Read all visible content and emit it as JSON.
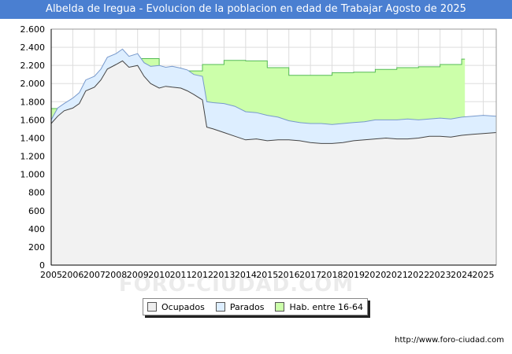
{
  "chart_data": {
    "type": "area",
    "title": "Albelda de Iregua - Evolucion de la poblacion en edad de Trabajar Agosto de 2025",
    "xlabel": "",
    "ylabel": "",
    "xlim": [
      2005.0,
      2025.6
    ],
    "ylim": [
      0,
      2600
    ],
    "y_ticks": [
      0,
      200,
      400,
      600,
      800,
      1000,
      1200,
      1400,
      1600,
      1800,
      2000,
      2200,
      2400,
      2600
    ],
    "y_tick_labels": [
      "0",
      "200",
      "400",
      "600",
      "800",
      "1.000",
      "1.200",
      "1.400",
      "1.600",
      "1.800",
      "2.000",
      "2.200",
      "2.400",
      "2.600"
    ],
    "x_ticks": [
      2005,
      2006,
      2007,
      2008,
      2009,
      2010,
      2011,
      2012,
      2013,
      2014,
      2015,
      2016,
      2017,
      2018,
      2019,
      2020,
      2021,
      2022,
      2023,
      2024,
      2025
    ],
    "x_tick_labels": [
      "2005",
      "2006",
      "2007",
      "2008",
      "2009",
      "2010",
      "2011",
      "2012",
      "2013",
      "2014",
      "2015",
      "2016",
      "2017",
      "2018",
      "2019",
      "2020",
      "2021",
      "2022",
      "2023",
      "2024",
      "2025"
    ],
    "grid": true,
    "legend_position": "bottom-center",
    "series": [
      {
        "name": "Hab. entre 16-64",
        "color": "#ccffaa",
        "line_color": "#55bb55",
        "step": true,
        "x": [
          2005,
          2006,
          2007,
          2008,
          2009,
          2010,
          2011,
          2012,
          2013,
          2014,
          2015,
          2016,
          2017,
          2018,
          2019,
          2020,
          2021,
          2022,
          2023,
          2024
        ],
        "values": [
          1725,
          1835,
          2005,
          2245,
          2275,
          2170,
          2140,
          2210,
          2255,
          2250,
          2175,
          2090,
          2090,
          2120,
          2125,
          2155,
          2175,
          2185,
          2210,
          2270
        ]
      },
      {
        "name": "Parados",
        "color": "#ddeeff",
        "line_color": "#7799cc",
        "x": [
          2005.0,
          2005.3,
          2005.6,
          2006.0,
          2006.3,
          2006.6,
          2007.0,
          2007.3,
          2007.6,
          2008.0,
          2008.3,
          2008.6,
          2009.0,
          2009.3,
          2009.6,
          2010.0,
          2010.3,
          2010.6,
          2011.0,
          2011.3,
          2011.6,
          2012.0,
          2012.2,
          2012.5,
          2013.0,
          2013.5,
          2014.0,
          2014.5,
          2015.0,
          2015.5,
          2016.0,
          2016.5,
          2017.0,
          2017.5,
          2018.0,
          2018.5,
          2019.0,
          2019.5,
          2020.0,
          2020.5,
          2021.0,
          2021.5,
          2022.0,
          2022.5,
          2023.0,
          2023.5,
          2024.0,
          2024.5,
          2025.0,
          2025.6
        ],
        "values": [
          1600,
          1730,
          1780,
          1840,
          1900,
          2040,
          2080,
          2160,
          2290,
          2330,
          2380,
          2300,
          2330,
          2230,
          2190,
          2200,
          2180,
          2190,
          2170,
          2150,
          2100,
          2080,
          1800,
          1790,
          1780,
          1750,
          1690,
          1680,
          1650,
          1630,
          1590,
          1570,
          1560,
          1560,
          1550,
          1560,
          1570,
          1580,
          1600,
          1600,
          1600,
          1610,
          1600,
          1610,
          1620,
          1610,
          1630,
          1640,
          1650,
          1640
        ]
      },
      {
        "name": "Ocupados",
        "color": "#f2f2f2",
        "line_color": "#444444",
        "x": [
          2005.0,
          2005.3,
          2005.6,
          2006.0,
          2006.3,
          2006.6,
          2007.0,
          2007.3,
          2007.6,
          2008.0,
          2008.3,
          2008.6,
          2009.0,
          2009.3,
          2009.6,
          2010.0,
          2010.3,
          2010.6,
          2011.0,
          2011.3,
          2011.6,
          2012.0,
          2012.2,
          2012.5,
          2013.0,
          2013.5,
          2014.0,
          2014.5,
          2015.0,
          2015.5,
          2016.0,
          2016.5,
          2017.0,
          2017.5,
          2018.0,
          2018.5,
          2019.0,
          2019.5,
          2020.0,
          2020.5,
          2021.0,
          2021.5,
          2022.0,
          2022.5,
          2023.0,
          2023.5,
          2024.0,
          2024.5,
          2025.0,
          2025.6
        ],
        "values": [
          1560,
          1640,
          1700,
          1730,
          1780,
          1920,
          1960,
          2040,
          2160,
          2210,
          2250,
          2180,
          2200,
          2080,
          2000,
          1950,
          1970,
          1960,
          1950,
          1920,
          1880,
          1820,
          1520,
          1500,
          1460,
          1420,
          1380,
          1390,
          1370,
          1380,
          1380,
          1370,
          1350,
          1340,
          1340,
          1350,
          1370,
          1380,
          1390,
          1400,
          1390,
          1390,
          1400,
          1420,
          1420,
          1410,
          1430,
          1440,
          1450,
          1460
        ]
      }
    ]
  },
  "legend": {
    "items": [
      {
        "label": "Ocupados",
        "color": "#eeeeee"
      },
      {
        "label": "Parados",
        "color": "#ddeeff"
      },
      {
        "label": "Hab. entre 16-64",
        "color": "#ccffaa"
      }
    ]
  },
  "watermark": "FORO-CIUDAD.COM",
  "source": "http://www.foro-ciudad.com"
}
